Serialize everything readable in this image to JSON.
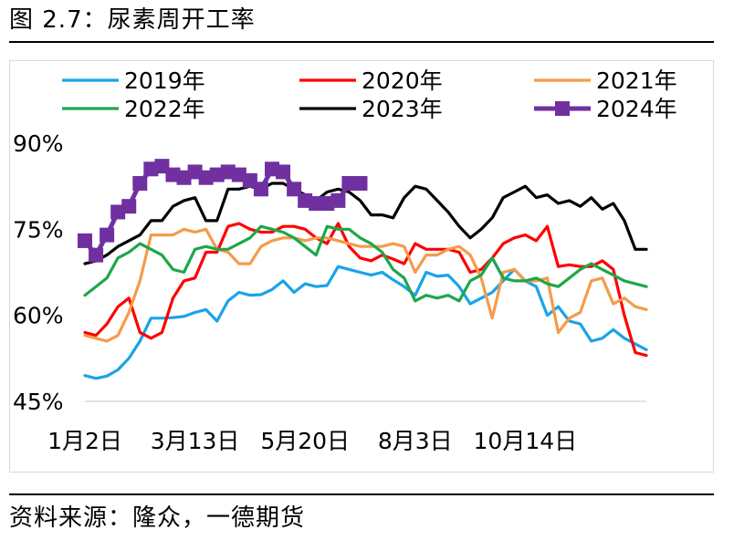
{
  "figure": {
    "title": "图 2.7：尿素周开工率",
    "source": "资料来源：隆众，一德期货"
  },
  "chart_data": {
    "type": "line",
    "ylim": [
      45,
      90
    ],
    "yticks": [
      "90%",
      "75%",
      "60%",
      "45%"
    ],
    "ytick_values": [
      90,
      75,
      60,
      45
    ],
    "xticks": [
      "1月2日",
      "3月13日",
      "5月20日",
      "8月3日",
      "10月14日"
    ],
    "xtick_weeks": [
      1,
      11,
      21,
      31,
      41
    ],
    "grid": false,
    "legend_position": "top",
    "series": [
      {
        "name": "2019年",
        "color": "#1aa3e8",
        "marker": "none",
        "x": [
          1,
          2,
          3,
          4,
          5,
          6,
          7,
          8,
          9,
          10,
          11,
          12,
          13,
          14,
          15,
          16,
          17,
          18,
          19,
          20,
          21,
          22,
          23,
          24,
          25,
          26,
          27,
          28,
          29,
          30,
          31,
          32,
          33,
          34,
          35,
          36,
          37,
          38,
          39,
          40,
          41,
          42,
          43,
          44,
          45,
          46,
          47,
          48,
          49,
          50,
          51,
          52
        ],
        "values": [
          49.5,
          49.0,
          49.4,
          50.5,
          52.5,
          55.5,
          59.5,
          59.5,
          59.6,
          59.8,
          60.5,
          61.0,
          59.0,
          62.5,
          64.0,
          63.5,
          63.6,
          64.5,
          66.0,
          64.0,
          65.5,
          65.0,
          65.2,
          68.5,
          68.0,
          67.5,
          67.0,
          67.5,
          66.2,
          65.0,
          63.5,
          67.5,
          66.8,
          67.0,
          65.0,
          62.0,
          63.0,
          64.0,
          66.0,
          68.0,
          66.0,
          65.0,
          60.0,
          61.5,
          59.0,
          58.5,
          55.5,
          56.0,
          57.5,
          56.0,
          55.0,
          54.0
        ]
      },
      {
        "name": "2020年",
        "color": "#ff0000",
        "marker": "none",
        "x": [
          1,
          2,
          3,
          4,
          5,
          6,
          7,
          8,
          9,
          10,
          11,
          12,
          13,
          14,
          15,
          16,
          17,
          18,
          19,
          20,
          21,
          22,
          23,
          24,
          25,
          26,
          27,
          28,
          29,
          30,
          31,
          32,
          33,
          34,
          35,
          36,
          37,
          38,
          39,
          40,
          41,
          42,
          43,
          44,
          45,
          46,
          47,
          48,
          49,
          50,
          51,
          52
        ],
        "values": [
          57.0,
          56.5,
          58.5,
          61.5,
          63.0,
          57.0,
          56.0,
          57.0,
          63.0,
          66.0,
          66.5,
          71.0,
          71.0,
          75.5,
          76.0,
          75.0,
          74.5,
          74.5,
          75.5,
          75.5,
          75.0,
          73.5,
          72.5,
          76.0,
          72.0,
          70.0,
          69.5,
          70.5,
          69.8,
          69.0,
          72.5,
          71.5,
          71.5,
          71.5,
          71.0,
          67.5,
          68.0,
          70.0,
          72.5,
          73.5,
          74.0,
          73.0,
          75.5,
          68.5,
          68.8,
          68.5,
          68.5,
          69.5,
          68.0,
          60.0,
          53.5,
          53.0
        ]
      },
      {
        "name": "2021年",
        "color": "#f59b4a",
        "marker": "none",
        "x": [
          1,
          2,
          3,
          4,
          5,
          6,
          7,
          8,
          9,
          10,
          11,
          12,
          13,
          14,
          15,
          16,
          17,
          18,
          19,
          20,
          21,
          22,
          23,
          24,
          25,
          26,
          27,
          28,
          29,
          30,
          31,
          32,
          33,
          34,
          35,
          36,
          37,
          38,
          39,
          40,
          41,
          42,
          43,
          44,
          45,
          46,
          47,
          48,
          49,
          50,
          51,
          52
        ],
        "values": [
          56.5,
          56.0,
          55.5,
          56.5,
          60.5,
          66.0,
          74.0,
          74.0,
          74.0,
          75.0,
          74.5,
          75.0,
          71.5,
          71.0,
          69.0,
          69.0,
          72.0,
          73.0,
          73.5,
          73.5,
          73.0,
          73.5,
          73.5,
          73.0,
          72.5,
          72.0,
          72.0,
          72.0,
          72.5,
          72.0,
          67.5,
          70.5,
          70.5,
          71.5,
          72.0,
          70.5,
          66.5,
          59.5,
          67.5,
          68.0,
          66.0,
          66.0,
          66.5,
          57.0,
          59.5,
          60.5,
          66.0,
          66.5,
          62.0,
          63.0,
          61.5,
          61.0
        ]
      },
      {
        "name": "2022年",
        "color": "#1fa64a",
        "marker": "none",
        "x": [
          1,
          2,
          3,
          4,
          5,
          6,
          7,
          8,
          9,
          10,
          11,
          12,
          13,
          14,
          15,
          16,
          17,
          18,
          19,
          20,
          21,
          22,
          23,
          24,
          25,
          26,
          27,
          28,
          29,
          30,
          31,
          32,
          33,
          34,
          35,
          36,
          37,
          38,
          39,
          40,
          41,
          42,
          43,
          44,
          45,
          46,
          47,
          48,
          49,
          50,
          51,
          52
        ],
        "values": [
          63.5,
          65.0,
          66.5,
          70.0,
          71.0,
          72.5,
          71.5,
          70.5,
          68.0,
          67.5,
          71.5,
          72.0,
          71.5,
          71.5,
          72.5,
          73.5,
          75.5,
          75.0,
          74.5,
          73.5,
          72.0,
          70.5,
          75.5,
          75.0,
          75.0,
          73.5,
          72.5,
          71.0,
          68.0,
          66.5,
          62.5,
          63.5,
          63.0,
          63.5,
          62.5,
          66.0,
          67.0,
          70.0,
          66.5,
          66.0,
          66.0,
          66.5,
          65.5,
          65.0,
          66.5,
          68.0,
          69.0,
          68.0,
          67.0,
          66.0,
          65.5,
          65.0
        ]
      },
      {
        "name": "2023年",
        "color": "#000000",
        "marker": "none",
        "x": [
          1,
          2,
          3,
          4,
          5,
          6,
          7,
          8,
          9,
          10,
          11,
          12,
          13,
          14,
          15,
          16,
          17,
          18,
          19,
          20,
          21,
          22,
          23,
          24,
          25,
          26,
          27,
          28,
          29,
          30,
          31,
          32,
          33,
          34,
          35,
          36,
          37,
          38,
          39,
          40,
          41,
          42,
          43,
          44,
          45,
          46,
          47,
          48,
          49,
          50,
          51,
          52
        ],
        "values": [
          69.0,
          69.5,
          70.5,
          72.0,
          73.0,
          74.0,
          76.5,
          76.5,
          79.0,
          80.0,
          80.5,
          76.5,
          76.5,
          82.0,
          82.0,
          82.5,
          82.0,
          83.0,
          83.0,
          82.0,
          81.0,
          80.0,
          81.5,
          82.0,
          81.5,
          80.0,
          77.5,
          77.5,
          77.0,
          80.5,
          82.5,
          82.0,
          80.0,
          78.0,
          75.5,
          73.5,
          75.0,
          77.0,
          80.5,
          81.5,
          82.5,
          80.5,
          81.0,
          79.5,
          80.0,
          79.0,
          80.5,
          78.5,
          79.5,
          76.5,
          71.5,
          71.5
        ]
      },
      {
        "name": "2024年",
        "color": "#7030a0",
        "marker": "square",
        "x": [
          1,
          2,
          3,
          4,
          5,
          6,
          7,
          8,
          9,
          10,
          11,
          12,
          13,
          14,
          15,
          16,
          17,
          18,
          19,
          20,
          21,
          22,
          23,
          24,
          25,
          26
        ],
        "values": [
          73.0,
          70.5,
          74.0,
          78.0,
          79.0,
          83.0,
          85.5,
          86.0,
          84.5,
          84.0,
          85.0,
          84.0,
          84.5,
          85.0,
          84.5,
          83.5,
          82.0,
          85.5,
          85.0,
          82.0,
          80.0,
          79.5,
          79.5,
          80.0,
          83.0,
          83.0
        ]
      }
    ]
  }
}
